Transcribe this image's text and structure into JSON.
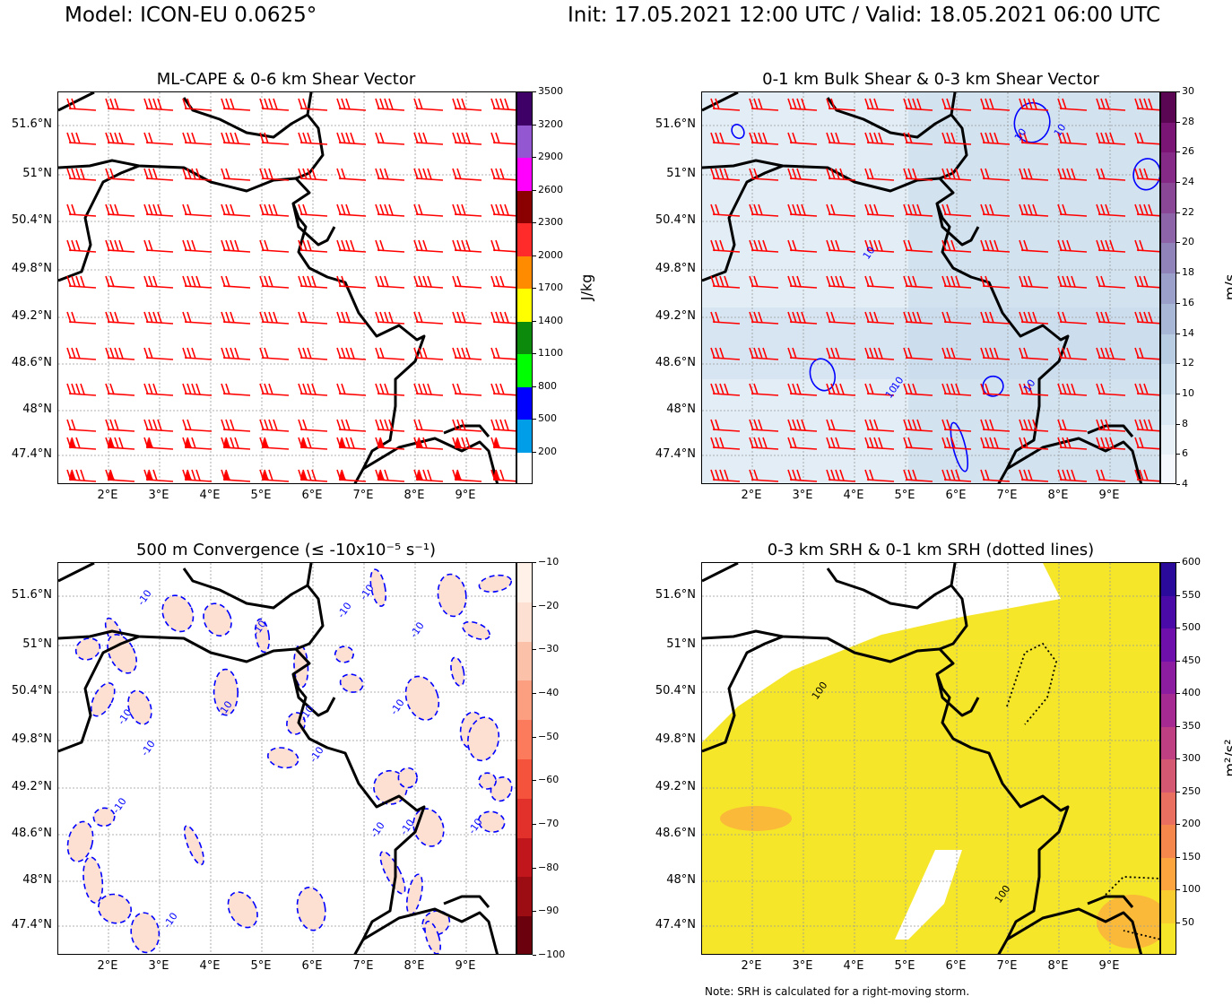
{
  "header": {
    "model": "Model: ICON-EU 0.0625°",
    "times": "Init: 17.05.2021 12:00 UTC / Valid: 18.05.2021 06:00 UTC"
  },
  "lat_labels": [
    "51.6°N",
    "51°N",
    "50.4°N",
    "49.8°N",
    "49.2°N",
    "48.6°N",
    "48°N",
    "47.4°N"
  ],
  "lon_labels": [
    "2°E",
    "3°E",
    "4°E",
    "5°E",
    "6°E",
    "7°E",
    "8°E",
    "9°E"
  ],
  "panels": [
    {
      "title": "ML-CAPE & 0-6 km Shear Vector",
      "unit": "J/kg",
      "cbar_ticks": [
        "3500",
        "3200",
        "2900",
        "2600",
        "2300",
        "2000",
        "1700",
        "1400",
        "1100",
        "800",
        "500",
        "200"
      ],
      "cbar_colors": [
        "#3e0066",
        "#9457d2",
        "#ff00ff",
        "#8b0000",
        "#ff2a2a",
        "#ff8c00",
        "#ffff00",
        "#0b8a0b",
        "#00ff00",
        "#0000ff",
        "#009de8",
        "#ffffff"
      ],
      "field_color": "#ffffff",
      "barb_color": "#ff0000",
      "contour_color": "",
      "contour_labels": []
    },
    {
      "title": "0-1 km Bulk Shear & 0-3 km Shear Vector",
      "unit": "m/s",
      "cbar_ticks": [
        "30",
        "28",
        "26",
        "24",
        "22",
        "20",
        "18",
        "16",
        "14",
        "12",
        "10",
        "8",
        "6",
        "4"
      ],
      "cbar_colors": [
        "#5a0652",
        "#7a1575",
        "#852a86",
        "#8a4795",
        "#8d64a7",
        "#8f83ba",
        "#9aa0c9",
        "#a9b7d6",
        "#b9cde2",
        "#cadeed",
        "#dbe9f4",
        "#e8f1f8",
        "#f4f8fc"
      ],
      "field_color": "#e2edf6",
      "barb_color": "#ff0000",
      "contour_color": "#0000ff",
      "contour_labels": [
        "10",
        "10",
        "10",
        "10",
        "10",
        "10"
      ]
    },
    {
      "title": "500 m Convergence (≤ -10x10⁻⁵ s⁻¹)",
      "unit": "",
      "cbar_ticks": [
        "−10",
        "−20",
        "−30",
        "−40",
        "−50",
        "−60",
        "−70",
        "−80",
        "−90",
        "−100"
      ],
      "cbar_colors": [
        "#fff0e8",
        "#fde0d2",
        "#fcc1a9",
        "#fc9f81",
        "#fb7b5c",
        "#f5533b",
        "#e2302a",
        "#c1161b",
        "#9b0c13",
        "#6b010d"
      ],
      "field_color": "#ffffff",
      "barb_color": "",
      "contour_color": "#0000ff",
      "contour_labels": [
        "-10",
        "-10",
        "-10",
        "-10",
        "-10",
        "-10",
        "-10",
        "-10",
        "-10",
        "-10",
        "-10",
        "-10",
        "-10",
        "-10",
        "-10",
        "-10"
      ]
    },
    {
      "title": "0-3 km SRH & 0-1 km SRH (dotted lines)",
      "unit": "m²/s²",
      "cbar_ticks": [
        "600",
        "550",
        "500",
        "450",
        "400",
        "350",
        "300",
        "250",
        "200",
        "150",
        "100",
        "50"
      ],
      "cbar_colors": [
        "#2a0a9a",
        "#4a0aa8",
        "#6e0fab",
        "#8c1ca0",
        "#a52b92",
        "#be3f82",
        "#d45871",
        "#e96f60",
        "#f5874d",
        "#fca53e",
        "#f9cd30",
        "#f5e629"
      ],
      "field_color": "#f5e629",
      "barb_color": "",
      "contour_color": "#000000",
      "contour_labels": [
        "100",
        "100"
      ]
    }
  ],
  "note": "Note: SRH is calculated for a right-moving storm."
}
